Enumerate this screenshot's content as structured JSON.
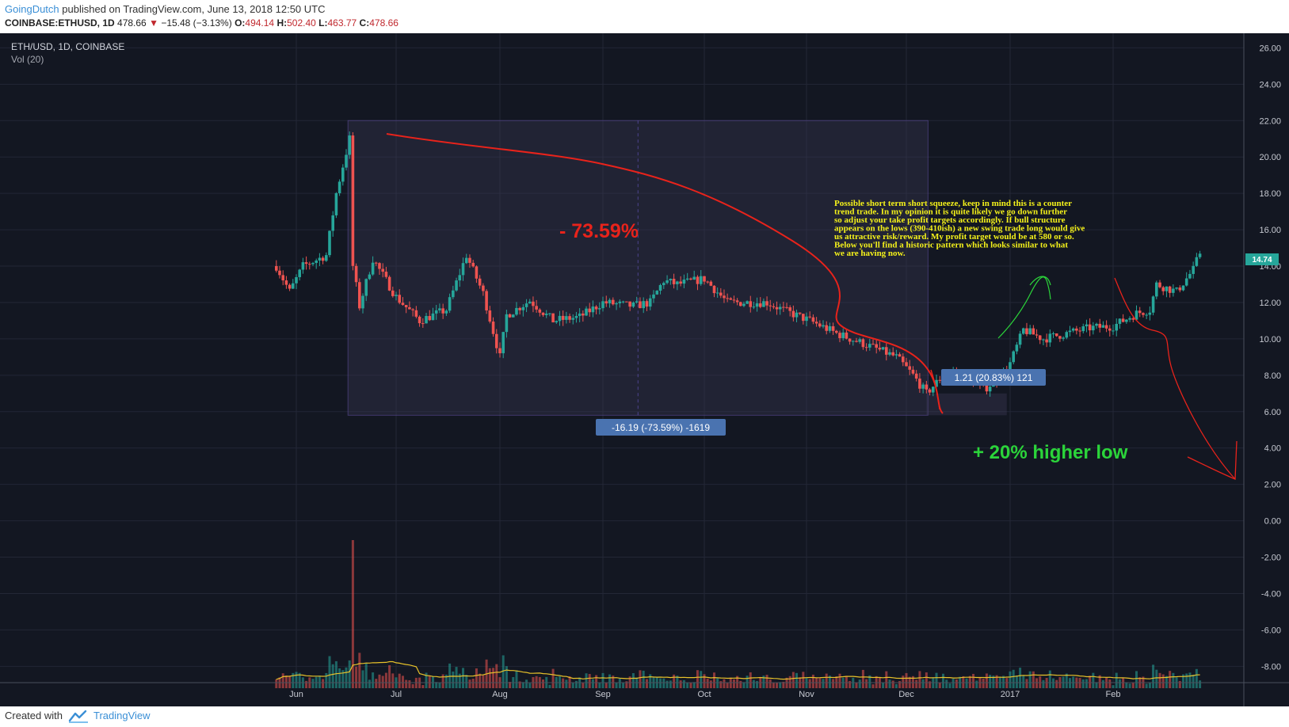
{
  "header": {
    "author": "GoingDutch",
    "published": "published on TradingView.com, June 13, 2018 12:50 UTC",
    "symbol": "COINBASE:ETHUSD, 1D",
    "last": "478.66",
    "change_arrow": "▼",
    "change": "−15.48 (−3.13%)",
    "open_label": "O:",
    "open": "494.14",
    "high_label": "H:",
    "high": "502.40",
    "low_label": "L:",
    "low": "463.77",
    "close_label": "C:",
    "close": "478.66"
  },
  "legend": {
    "pair": "ETH/USD, 1D, COINBASE",
    "volume": "Vol (20)"
  },
  "annotations": {
    "drop_pct": "- 73.59%",
    "drop_measure": "-16.19 (-73.59%) -1619",
    "rise_measure": "1.21 (20.83%) 121",
    "higher_low": "+ 20% higher low",
    "note": "Possible short term short squeeze, keep in mind this is a counter trend trade. In my opinion it is quite likely we go down further so adjust your take profit targets accordingly. If bull structure appears on the lows (390-410ish) a new swing trade long would give us attractive risk/reward. My profit target would be at 580 or so. Below you'll find a historic pattern which looks similar to what we are having now."
  },
  "footer": {
    "created_with": "Created with",
    "brand": "TradingView"
  },
  "chart_data": {
    "type": "candlestick",
    "title": "ETH/USD, 1D, COINBASE",
    "x_tick_labels": [
      "Jun",
      "Jul",
      "Aug",
      "Sep",
      "Oct",
      "Nov",
      "Dec",
      "2017",
      "Feb"
    ],
    "y_tick_labels": [
      "26.00",
      "24.00",
      "22.00",
      "20.00",
      "18.00",
      "16.00",
      "14.00",
      "12.00",
      "10.00",
      "8.00",
      "6.00",
      "4.00",
      "2.00",
      "0.00",
      "-2.00",
      "-4.00",
      "-6.00",
      "-8.00"
    ],
    "ylim": [
      -8.9,
      26.8
    ],
    "last_price_label": "14.74",
    "colors": {
      "up": "#26a69a",
      "down": "#ef5350",
      "background": "#131722",
      "volume_ma": "#e8c22a",
      "annotation_red": "#e8231b",
      "annotation_green": "#2bd43a",
      "note_text": "#f5f21a",
      "measure_box": "#4a73b0"
    },
    "price_path": [
      {
        "date": "2016-05-26",
        "price": 14.0
      },
      {
        "date": "2016-05-30",
        "price": 12.6
      },
      {
        "date": "2016-06-03",
        "price": 14.0
      },
      {
        "date": "2016-06-10",
        "price": 14.6
      },
      {
        "date": "2016-06-13",
        "price": 18.0
      },
      {
        "date": "2016-06-17",
        "price": 21.0
      },
      {
        "date": "2016-06-18",
        "price": 14.0
      },
      {
        "date": "2016-06-20",
        "price": 11.8
      },
      {
        "date": "2016-06-24",
        "price": 14.4
      },
      {
        "date": "2016-07-01",
        "price": 12.3
      },
      {
        "date": "2016-07-08",
        "price": 11.0
      },
      {
        "date": "2016-07-16",
        "price": 11.6
      },
      {
        "date": "2016-07-22",
        "price": 14.6
      },
      {
        "date": "2016-07-27",
        "price": 12.5
      },
      {
        "date": "2016-08-01",
        "price": 9.0
      },
      {
        "date": "2016-08-03",
        "price": 11.3
      },
      {
        "date": "2016-08-10",
        "price": 12.1
      },
      {
        "date": "2016-08-17",
        "price": 11.0
      },
      {
        "date": "2016-08-25",
        "price": 11.2
      },
      {
        "date": "2016-09-01",
        "price": 12.0
      },
      {
        "date": "2016-09-10",
        "price": 11.8
      },
      {
        "date": "2016-09-15",
        "price": 12.0
      },
      {
        "date": "2016-09-19",
        "price": 13.2
      },
      {
        "date": "2016-09-23",
        "price": 13.0
      },
      {
        "date": "2016-10-01",
        "price": 13.3
      },
      {
        "date": "2016-10-08",
        "price": 12.0
      },
      {
        "date": "2016-10-20",
        "price": 12.0
      },
      {
        "date": "2016-10-26",
        "price": 11.5
      },
      {
        "date": "2016-11-02",
        "price": 11.0
      },
      {
        "date": "2016-11-10",
        "price": 10.3
      },
      {
        "date": "2016-11-20",
        "price": 9.6
      },
      {
        "date": "2016-11-28",
        "price": 9.0
      },
      {
        "date": "2016-12-03",
        "price": 8.0
      },
      {
        "date": "2016-12-07",
        "price": 7.0
      },
      {
        "date": "2016-12-13",
        "price": 8.2
      },
      {
        "date": "2016-12-20",
        "price": 7.8
      },
      {
        "date": "2016-12-24",
        "price": 7.2
      },
      {
        "date": "2016-12-31",
        "price": 8.2
      },
      {
        "date": "2017-01-05",
        "price": 10.5
      },
      {
        "date": "2017-01-11",
        "price": 10.0
      },
      {
        "date": "2017-01-18",
        "price": 10.3
      },
      {
        "date": "2017-01-25",
        "price": 10.6
      },
      {
        "date": "2017-02-01",
        "price": 10.7
      },
      {
        "date": "2017-02-08",
        "price": 11.4
      },
      {
        "date": "2017-02-12",
        "price": 11.6
      },
      {
        "date": "2017-02-14",
        "price": 13.0
      },
      {
        "date": "2017-02-20",
        "price": 12.6
      },
      {
        "date": "2017-02-25",
        "price": 13.8
      },
      {
        "date": "2017-02-27",
        "price": 14.74
      }
    ],
    "drop_range": {
      "from_date": "2016-06-17",
      "to_date": "2016-12-07",
      "high": 22.0,
      "low": 5.8
    },
    "rise_range": {
      "from_date": "2016-12-07",
      "to_date": "2016-12-31",
      "low": 5.8,
      "high": 7.0
    }
  }
}
